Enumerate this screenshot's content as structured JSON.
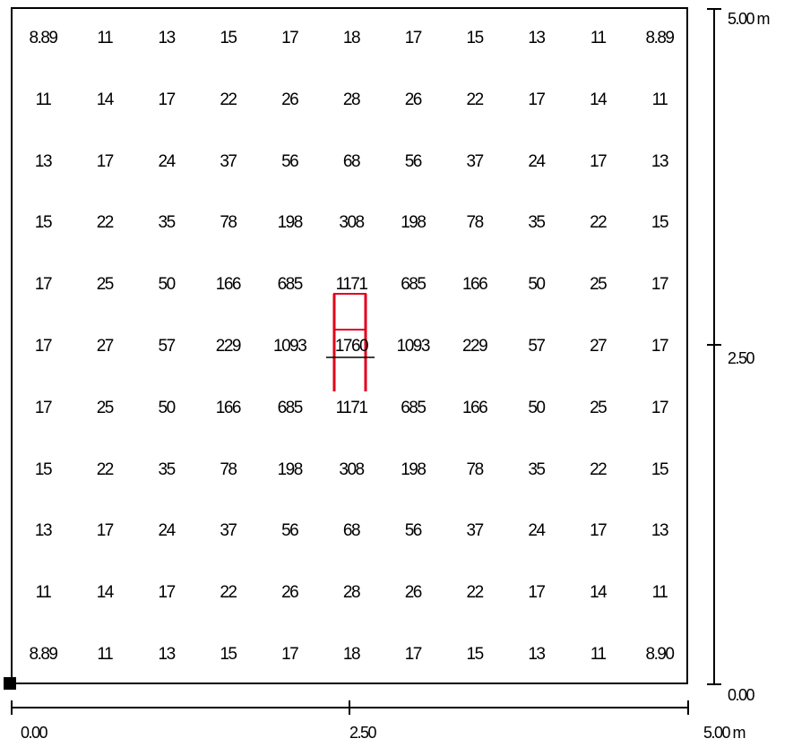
{
  "grid": {
    "rows": [
      [
        "8.89",
        "11",
        "13",
        "15",
        "17",
        "18",
        "17",
        "15",
        "13",
        "11",
        "8.89"
      ],
      [
        "11",
        "14",
        "17",
        "22",
        "26",
        "28",
        "26",
        "22",
        "17",
        "14",
        "11"
      ],
      [
        "13",
        "17",
        "24",
        "37",
        "56",
        "68",
        "56",
        "37",
        "24",
        "17",
        "13"
      ],
      [
        "15",
        "22",
        "35",
        "78",
        "198",
        "308",
        "198",
        "78",
        "35",
        "22",
        "15"
      ],
      [
        "17",
        "25",
        "50",
        "166",
        "685",
        "1171",
        "685",
        "166",
        "50",
        "25",
        "17"
      ],
      [
        "17",
        "27",
        "57",
        "229",
        "1093",
        "1760",
        "1093",
        "229",
        "57",
        "27",
        "17"
      ],
      [
        "17",
        "25",
        "50",
        "166",
        "685",
        "1171",
        "685",
        "166",
        "50",
        "25",
        "17"
      ],
      [
        "15",
        "22",
        "35",
        "78",
        "198",
        "308",
        "198",
        "78",
        "35",
        "22",
        "15"
      ],
      [
        "13",
        "17",
        "24",
        "37",
        "56",
        "68",
        "56",
        "37",
        "24",
        "17",
        "13"
      ],
      [
        "11",
        "14",
        "17",
        "22",
        "26",
        "28",
        "26",
        "22",
        "17",
        "14",
        "11"
      ],
      [
        "8.89",
        "11",
        "13",
        "15",
        "17",
        "18",
        "17",
        "15",
        "13",
        "11",
        "8.90"
      ]
    ]
  },
  "x_axis": {
    "labels": [
      "0.00",
      "2.50",
      "5.00 m"
    ]
  },
  "y_axis": {
    "labels": [
      "5.00 m",
      "2.50",
      "0.00"
    ]
  },
  "colors": {
    "luminaire": "#e0001a",
    "line": "#000000"
  }
}
